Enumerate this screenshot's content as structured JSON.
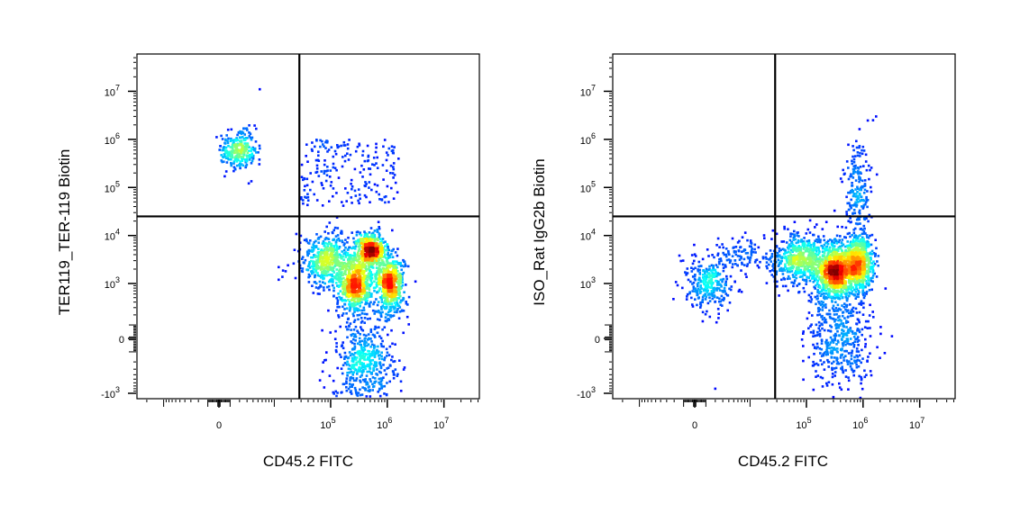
{
  "chart_data": [
    {
      "type": "scatter",
      "subtype": "flow-cytometry density dot plot",
      "xlabel": "CD45.2 FITC",
      "ylabel": "TER119_TER-119 Biotin",
      "x_scale": "biexponential",
      "y_scale": "biexponential",
      "x_ticks": [
        {
          "value": 0,
          "base": "0",
          "exp": ""
        },
        {
          "value": 100000,
          "base": "10",
          "exp": "5"
        },
        {
          "value": 1000000,
          "base": "10",
          "exp": "6"
        },
        {
          "value": 10000000,
          "base": "10",
          "exp": "7"
        }
      ],
      "y_ticks": [
        {
          "value": -1000,
          "base": "-10",
          "exp": "3"
        },
        {
          "value": 0,
          "base": "0",
          "exp": ""
        },
        {
          "value": 1000,
          "base": "10",
          "exp": "3"
        },
        {
          "value": 10000,
          "base": "10",
          "exp": "4"
        },
        {
          "value": 100000,
          "base": "10",
          "exp": "5"
        },
        {
          "value": 1000000,
          "base": "10",
          "exp": "6"
        },
        {
          "value": 10000000,
          "base": "10",
          "exp": "7"
        }
      ],
      "quadrant_gate": {
        "x": 28000,
        "y": 25000
      },
      "grid": false,
      "color_by": "density (blue low → red high)",
      "populations": [
        {
          "center": [
            1900,
            600000
          ],
          "spread_decades": [
            0.16,
            0.22
          ],
          "n": 280
        },
        {
          "uniform_x": [
            30000,
            1600000
          ],
          "uniform_y": [
            40000,
            1000000
          ],
          "n": 200
        },
        {
          "center": [
            80000,
            3000
          ],
          "spread_decades": [
            0.22,
            0.28
          ],
          "n": 500
        },
        {
          "center": [
            280000,
            1000
          ],
          "spread_decades": [
            0.16,
            0.3
          ],
          "n": 700
        },
        {
          "center": [
            500000,
            5000
          ],
          "spread_decades": [
            0.13,
            0.18
          ],
          "n": 450
        },
        {
          "center": [
            1100000,
            1000
          ],
          "spread_decades": [
            0.13,
            0.32
          ],
          "n": 600
        },
        {
          "center": [
            400000,
            -200
          ],
          "spread_decades": [
            0.28,
            0.5
          ],
          "n": 500
        }
      ],
      "outliers": [
        [
          5400,
          11000000
        ],
        [
          12000,
          2200
        ],
        [
          12000,
          1200
        ],
        [
          24000,
          1300
        ],
        [
          16000,
          1800
        ]
      ]
    },
    {
      "type": "scatter",
      "subtype": "flow-cytometry density dot plot",
      "xlabel": "CD45.2 FITC",
      "ylabel": "ISO_Rat IgG2b Biotin",
      "x_scale": "biexponential",
      "y_scale": "biexponential",
      "x_ticks": [
        {
          "value": 0,
          "base": "0",
          "exp": ""
        },
        {
          "value": 100000,
          "base": "10",
          "exp": "5"
        },
        {
          "value": 1000000,
          "base": "10",
          "exp": "6"
        },
        {
          "value": 10000000,
          "base": "10",
          "exp": "7"
        }
      ],
      "y_ticks": [
        {
          "value": -1000,
          "base": "-10",
          "exp": "3"
        },
        {
          "value": 0,
          "base": "0",
          "exp": ""
        },
        {
          "value": 1000,
          "base": "10",
          "exp": "3"
        },
        {
          "value": 10000,
          "base": "10",
          "exp": "4"
        },
        {
          "value": 100000,
          "base": "10",
          "exp": "5"
        },
        {
          "value": 1000000,
          "base": "10",
          "exp": "6"
        },
        {
          "value": 10000000,
          "base": "10",
          "exp": "7"
        }
      ],
      "quadrant_gate": {
        "x": 28000,
        "y": 25000
      },
      "grid": false,
      "color_by": "density (blue low → red high)",
      "populations": [
        {
          "center": [
            1300,
            1000
          ],
          "spread_decades": [
            0.2,
            0.28
          ],
          "n": 300
        },
        {
          "center": [
            7000,
            4000
          ],
          "spread_decades": [
            0.22,
            0.18
          ],
          "n": 90
        },
        {
          "center": [
            75000,
            3000
          ],
          "spread_decades": [
            0.24,
            0.28
          ],
          "n": 600
        },
        {
          "center": [
            320000,
            1900
          ],
          "spread_decades": [
            0.16,
            0.28
          ],
          "n": 900
        },
        {
          "center": [
            800000,
            2500
          ],
          "spread_decades": [
            0.14,
            0.32
          ],
          "n": 650
        },
        {
          "center": [
            800000,
            80000
          ],
          "spread_decades": [
            0.12,
            0.5
          ],
          "n": 200
        },
        {
          "center": [
            400000,
            0
          ],
          "spread_decades": [
            0.28,
            0.55
          ],
          "n": 450
        }
      ],
      "outliers": [
        [
          2000,
          -800
        ],
        [
          1700000,
          3000000
        ],
        [
          1500000,
          2500000
        ],
        [
          300000,
          -1200
        ],
        [
          900000,
          -1250
        ]
      ]
    }
  ]
}
